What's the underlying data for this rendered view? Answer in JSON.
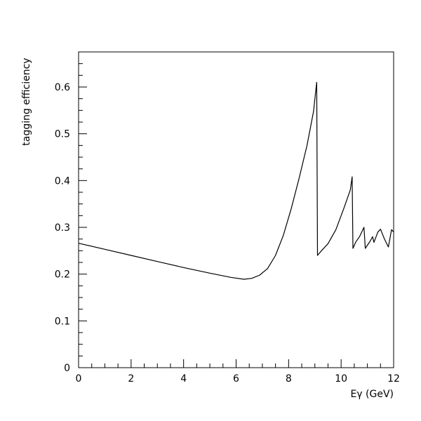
{
  "chart_data": {
    "type": "line",
    "title": "",
    "xlabel": "Eγ (GeV)",
    "ylabel": "tagging efficiency",
    "xlim": [
      0,
      12
    ],
    "ylim": [
      0,
      0.675
    ],
    "x_ticks": [
      0,
      2,
      4,
      6,
      8,
      10,
      12
    ],
    "y_ticks": [
      0,
      0.1,
      0.2,
      0.3,
      0.4,
      0.5,
      0.6
    ],
    "x_tick_labels": [
      "0",
      "2",
      "4",
      "6",
      "8",
      "10",
      "12"
    ],
    "y_tick_labels": [
      "0",
      "0.1",
      "0.2",
      "0.3",
      "0.4",
      "0.5",
      "0.6"
    ],
    "grid": false,
    "legend": "none",
    "series": [
      {
        "points": [
          [
            0,
            0.266
          ],
          [
            1,
            0.253
          ],
          [
            2,
            0.24
          ],
          [
            3,
            0.227
          ],
          [
            4,
            0.214
          ],
          [
            5,
            0.202
          ],
          [
            5.8,
            0.193
          ],
          [
            6.3,
            0.189
          ],
          [
            6.6,
            0.191
          ],
          [
            6.9,
            0.198
          ],
          [
            7.2,
            0.212
          ],
          [
            7.5,
            0.24
          ],
          [
            7.8,
            0.283
          ],
          [
            8.1,
            0.34
          ],
          [
            8.4,
            0.405
          ],
          [
            8.7,
            0.475
          ],
          [
            8.95,
            0.548
          ],
          [
            9.03,
            0.59
          ],
          [
            9.07,
            0.61
          ],
          [
            9.1,
            0.24
          ],
          [
            9.25,
            0.25
          ],
          [
            9.5,
            0.265
          ],
          [
            9.8,
            0.295
          ],
          [
            10.1,
            0.34
          ],
          [
            10.35,
            0.38
          ],
          [
            10.42,
            0.408
          ],
          [
            10.45,
            0.255
          ],
          [
            10.55,
            0.268
          ],
          [
            10.7,
            0.28
          ],
          [
            10.87,
            0.3
          ],
          [
            10.92,
            0.255
          ],
          [
            11.1,
            0.27
          ],
          [
            11.2,
            0.28
          ],
          [
            11.25,
            0.268
          ],
          [
            11.4,
            0.29
          ],
          [
            11.5,
            0.296
          ],
          [
            11.65,
            0.275
          ],
          [
            11.8,
            0.258
          ],
          [
            11.92,
            0.295
          ],
          [
            12,
            0.29
          ]
        ]
      }
    ]
  }
}
